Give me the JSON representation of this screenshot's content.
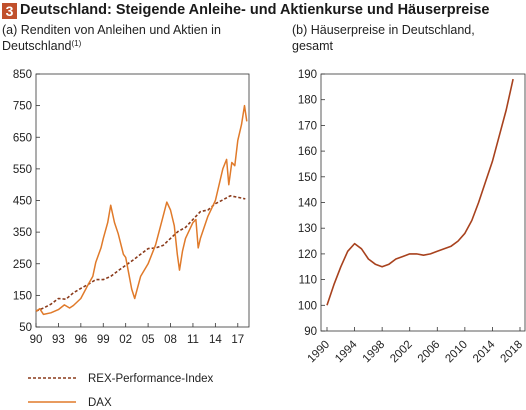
{
  "header": {
    "figure_number": "3",
    "title": "Deutschland: Steigende Anleihe- und Aktienkurse und Häuserpreise"
  },
  "chart_data": [
    {
      "type": "line",
      "subtitle_line1": "(a) Renditen von Anleihen und Aktien in",
      "subtitle_line2": "Deutschland",
      "footnote_marker": "(1)",
      "x_tick_labels": [
        "90",
        "93",
        "96",
        "99",
        "02",
        "05",
        "08",
        "11",
        "14",
        "17"
      ],
      "x_tick_values": [
        1990,
        1993,
        1996,
        1999,
        2002,
        2005,
        2008,
        2011,
        2014,
        2017
      ],
      "xlim": [
        1990,
        2018.5
      ],
      "y_tick_labels": [
        "50",
        "150",
        "250",
        "350",
        "450",
        "550",
        "650",
        "750",
        "850"
      ],
      "ylim": [
        50,
        850
      ],
      "grid": false,
      "legend_position": "bottom",
      "series": [
        {
          "name": "REX-Performance-Index",
          "style": "dashed",
          "color": "#8a3a1a",
          "x": [
            1990,
            1991,
            1992,
            1993,
            1994,
            1995,
            1996,
            1997,
            1998,
            1999,
            2000,
            2001,
            2002,
            2003,
            2004,
            2005,
            2006,
            2007,
            2008,
            2009,
            2010,
            2011,
            2012,
            2013,
            2014,
            2015,
            2016,
            2017,
            2018
          ],
          "y": [
            100,
            110,
            122,
            140,
            138,
            158,
            172,
            185,
            200,
            200,
            210,
            228,
            245,
            262,
            280,
            298,
            300,
            308,
            330,
            352,
            365,
            390,
            415,
            420,
            440,
            452,
            465,
            460,
            455
          ]
        },
        {
          "name": "DAX",
          "style": "solid",
          "color": "#e07a2a",
          "x": [
            1990,
            1990.5,
            1991,
            1992,
            1993,
            1993.8,
            1994.5,
            1995,
            1996,
            1997,
            1997.6,
            1998,
            1998.7,
            1999,
            1999.6,
            2000,
            2000.5,
            2001,
            2001.7,
            2002,
            2002.4,
            2002.8,
            2003.2,
            2004,
            2005,
            2006,
            2007,
            2007.5,
            2008,
            2008.5,
            2008.9,
            2009.2,
            2009.6,
            2010,
            2011,
            2011.4,
            2011.7,
            2012,
            2013,
            2014,
            2015,
            2015.5,
            2015.8,
            2016.2,
            2016.6,
            2017,
            2017.5,
            2017.9,
            2018.2
          ],
          "y": [
            100,
            108,
            90,
            95,
            105,
            120,
            110,
            118,
            140,
            185,
            210,
            255,
            300,
            330,
            380,
            435,
            380,
            345,
            280,
            270,
            220,
            170,
            140,
            210,
            250,
            310,
            400,
            445,
            420,
            370,
            280,
            230,
            290,
            330,
            380,
            390,
            300,
            330,
            400,
            450,
            550,
            580,
            500,
            570,
            560,
            640,
            690,
            750,
            700
          ]
        }
      ]
    },
    {
      "type": "line",
      "subtitle_line1": "(b) Häuserpreise in Deutschland,",
      "subtitle_line2": "gesamt",
      "x_tick_labels": [
        "1990",
        "1994",
        "1998",
        "2002",
        "2006",
        "2010",
        "2014",
        "2018"
      ],
      "x_tick_values": [
        1990,
        1994,
        1998,
        2002,
        2006,
        2010,
        2014,
        2018
      ],
      "xlim": [
        1990,
        2018
      ],
      "y_tick_labels": [
        "90",
        "100",
        "110",
        "120",
        "130",
        "140",
        "150",
        "160",
        "170",
        "180",
        "190"
      ],
      "ylim": [
        90,
        190
      ],
      "grid": false,
      "series": [
        {
          "name": "",
          "style": "solid",
          "color": "#a8421e",
          "x": [
            1990,
            1991,
            1992,
            1993,
            1994,
            1995,
            1996,
            1997,
            1998,
            1999,
            2000,
            2001,
            2002,
            2003,
            2004,
            2005,
            2006,
            2007,
            2008,
            2009,
            2010,
            2011,
            2012,
            2013,
            2014,
            2015,
            2016,
            2017
          ],
          "y": [
            100,
            108,
            115,
            121,
            124,
            122,
            118,
            116,
            115,
            116,
            118,
            119,
            120,
            120,
            119.5,
            120,
            121,
            122,
            123,
            125,
            128,
            133,
            140,
            148,
            156,
            166,
            176,
            188
          ]
        }
      ]
    }
  ]
}
